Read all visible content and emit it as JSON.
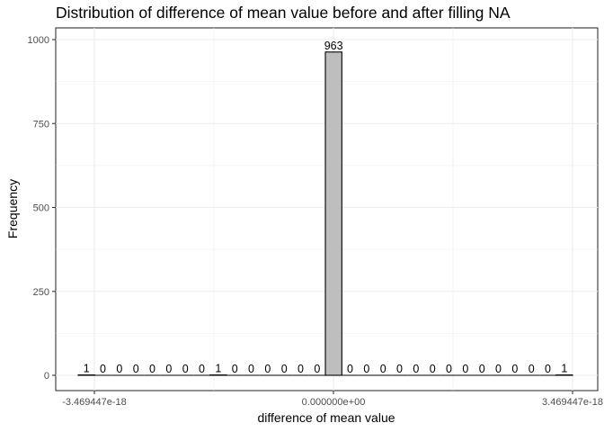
{
  "chart_data": {
    "type": "bar",
    "title": "Distribution of difference of mean value before and after filling NA",
    "xlabel": "difference of mean value",
    "ylabel": "Frequency",
    "ylim": [
      0,
      1000
    ],
    "y_ticks": [
      0,
      250,
      500,
      750,
      1000
    ],
    "y_tick_labels": [
      "0",
      "250",
      "500",
      "750",
      "1000"
    ],
    "x_ticks": [
      -3.469447e-18,
      0,
      3.469447e-18
    ],
    "x_tick_labels": [
      "-3.469447e-18",
      "0.000000e+00",
      "3.469447e-18"
    ],
    "grid": true,
    "bin_counts": [
      1,
      0,
      0,
      0,
      0,
      0,
      0,
      0,
      1,
      0,
      0,
      0,
      0,
      0,
      0,
      963,
      0,
      0,
      0,
      0,
      0,
      0,
      0,
      0,
      0,
      0,
      0,
      0,
      0,
      1
    ],
    "bar_fill": "#bebebe",
    "bar_stroke": "#000000"
  }
}
